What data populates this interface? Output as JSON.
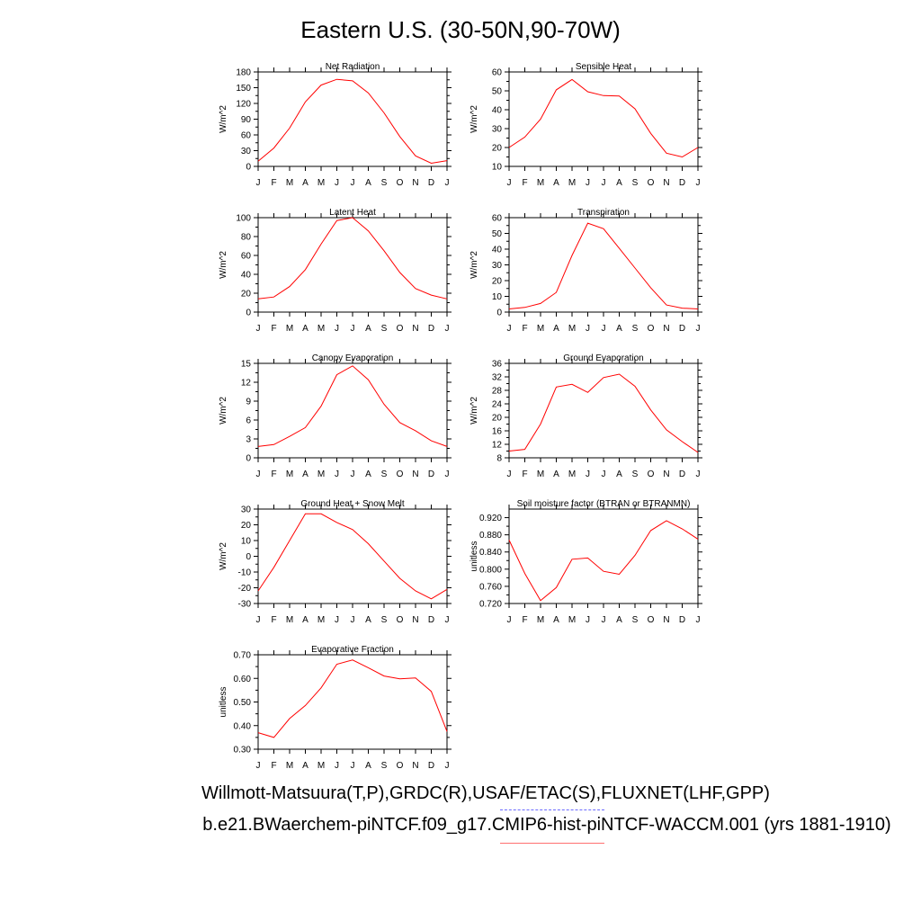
{
  "title": "Eastern U.S. (30-50N,90-70W)",
  "footer": {
    "line1": "Willmott-Matsuura(T,P),GRDC(R),USAF/ETAC(S),FLUXNET(LHF,GPP)",
    "line2": "b.e21.BWaerchem-piNTCF.f09_g17.CMIP6-hist-piNTCF-WACCM.001 (yrs 1881-1910)"
  },
  "colors": {
    "series": "#ff0000",
    "obs_dash": "#6a6aff",
    "model_line": "#ff7070"
  },
  "chart_data": [
    {
      "type": "line",
      "title": "Net Radiation",
      "ylabel": "W/m^2",
      "x": [
        "J",
        "F",
        "M",
        "A",
        "M",
        "J",
        "J",
        "A",
        "S",
        "O",
        "N",
        "D",
        "J"
      ],
      "ylim": [
        0,
        180
      ],
      "yticks": [
        "0",
        "30",
        "60",
        "90",
        "120",
        "150",
        "180"
      ],
      "values": [
        10,
        35,
        73,
        123,
        155,
        166,
        163,
        140,
        102,
        57,
        20,
        6,
        11
      ]
    },
    {
      "type": "line",
      "title": "Sensible Heat",
      "ylabel": "W/m^2",
      "x": [
        "J",
        "F",
        "M",
        "A",
        "M",
        "J",
        "J",
        "A",
        "S",
        "O",
        "N",
        "D",
        "J"
      ],
      "ylim": [
        10,
        60
      ],
      "yticks": [
        "10",
        "20",
        "30",
        "40",
        "50",
        "60"
      ],
      "values": [
        20,
        25.5,
        35,
        50.5,
        56,
        49.5,
        47.5,
        47.3,
        40.5,
        27.5,
        17,
        15,
        20
      ]
    },
    {
      "type": "line",
      "title": "Latent Heat",
      "ylabel": "W/m^2",
      "x": [
        "J",
        "F",
        "M",
        "A",
        "M",
        "J",
        "J",
        "A",
        "S",
        "O",
        "N",
        "D",
        "J"
      ],
      "ylim": [
        0,
        100
      ],
      "yticks": [
        "0",
        "20",
        "40",
        "60",
        "80",
        "100"
      ],
      "values": [
        14,
        16,
        27,
        45,
        72,
        97,
        100,
        86,
        65,
        42,
        25,
        18,
        14
      ]
    },
    {
      "type": "line",
      "title": "Transpiration",
      "ylabel": "W/m^2",
      "x": [
        "J",
        "F",
        "M",
        "A",
        "M",
        "J",
        "J",
        "A",
        "S",
        "O",
        "N",
        "D",
        "J"
      ],
      "ylim": [
        0,
        60
      ],
      "yticks": [
        "0",
        "10",
        "20",
        "30",
        "40",
        "50",
        "60"
      ],
      "values": [
        2,
        3,
        5.5,
        12.5,
        36,
        56.5,
        53,
        40.5,
        28,
        15.5,
        4.5,
        2.5,
        2
      ]
    },
    {
      "type": "line",
      "title": "Canopy Evaporation",
      "ylabel": "W/m^2",
      "x": [
        "J",
        "F",
        "M",
        "A",
        "M",
        "J",
        "J",
        "A",
        "S",
        "O",
        "N",
        "D",
        "J"
      ],
      "ylim": [
        0,
        15
      ],
      "yticks": [
        "0",
        "3",
        "6",
        "9",
        "12",
        "15"
      ],
      "values": [
        1.8,
        2.1,
        3.4,
        4.8,
        8.2,
        13.2,
        14.6,
        12.4,
        8.5,
        5.6,
        4.3,
        2.7,
        1.8
      ]
    },
    {
      "type": "line",
      "title": "Ground Evaporation",
      "ylabel": "W/m^2",
      "x": [
        "J",
        "F",
        "M",
        "A",
        "M",
        "J",
        "J",
        "A",
        "S",
        "O",
        "N",
        "D",
        "J"
      ],
      "ylim": [
        8,
        36
      ],
      "yticks": [
        "8",
        "12",
        "16",
        "20",
        "24",
        "28",
        "32",
        "36"
      ],
      "values": [
        10,
        10.5,
        18,
        29,
        29.8,
        27.4,
        31.8,
        32.8,
        29.2,
        22.2,
        16.3,
        12.8,
        9.6
      ]
    },
    {
      "type": "line",
      "title": "Ground Heat + Snow Melt",
      "ylabel": "W/m^2",
      "x": [
        "J",
        "F",
        "M",
        "A",
        "M",
        "J",
        "J",
        "A",
        "S",
        "O",
        "N",
        "D",
        "J"
      ],
      "ylim": [
        -30,
        30
      ],
      "yticks": [
        "-30",
        "-20",
        "-10",
        "0",
        "10",
        "20",
        "30"
      ],
      "values": [
        -22,
        -7,
        10,
        27,
        27,
        21.5,
        17,
        8,
        -3,
        -14,
        -22,
        -27,
        -21
      ]
    },
    {
      "type": "line",
      "title": "Soil moisture factor (BTRAN or BTRANMN)",
      "ylabel": "unitless",
      "x": [
        "J",
        "F",
        "M",
        "A",
        "M",
        "J",
        "J",
        "A",
        "S",
        "O",
        "N",
        "D",
        "J"
      ],
      "ylim": [
        0.72,
        0.94
      ],
      "yticks": [
        "0.720",
        "0.760",
        "0.800",
        "0.840",
        "0.880",
        "0.920"
      ],
      "values": [
        0.868,
        0.79,
        0.727,
        0.757,
        0.823,
        0.826,
        0.795,
        0.788,
        0.832,
        0.89,
        0.913,
        0.894,
        0.87
      ]
    },
    {
      "type": "line",
      "title": "Evaporative Fraction",
      "ylabel": "unitless",
      "x": [
        "J",
        "F",
        "M",
        "A",
        "M",
        "J",
        "J",
        "A",
        "S",
        "O",
        "N",
        "D",
        "J"
      ],
      "ylim": [
        0.3,
        0.7
      ],
      "yticks": [
        "0.30",
        "0.40",
        "0.50",
        "0.60",
        "0.70"
      ],
      "values": [
        0.37,
        0.35,
        0.43,
        0.485,
        0.56,
        0.66,
        0.678,
        0.645,
        0.61,
        0.598,
        0.602,
        0.545,
        0.375
      ]
    }
  ]
}
